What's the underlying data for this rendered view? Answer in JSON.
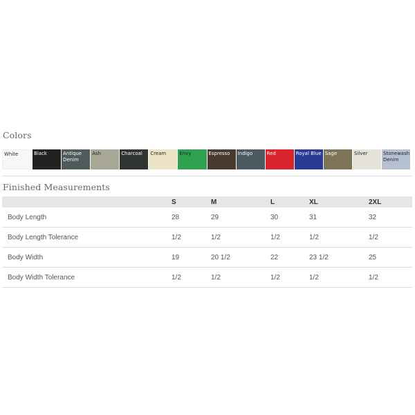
{
  "colors_section": {
    "title": "Colors",
    "swatches": [
      {
        "label": "White",
        "bg": "#f7f7f7",
        "fg": "#222222"
      },
      {
        "label": "Black",
        "bg": "#232220",
        "fg": "#ffffff"
      },
      {
        "label": "Antique Denim",
        "bg": "#4f5a5c",
        "fg": "#ffffff"
      },
      {
        "label": "Ash",
        "bg": "#a8a694",
        "fg": "#222222"
      },
      {
        "label": "Charcoal",
        "bg": "#2f3430",
        "fg": "#ffffff"
      },
      {
        "label": "Cream",
        "bg": "#ece2c5",
        "fg": "#222222"
      },
      {
        "label": "Envy",
        "bg": "#2ea250",
        "fg": "#222222"
      },
      {
        "label": "Espresso",
        "bg": "#4a3a2e",
        "fg": "#ffffff"
      },
      {
        "label": "Indigo",
        "bg": "#4a5a5e",
        "fg": "#ffffff"
      },
      {
        "label": "Red",
        "bg": "#d8232f",
        "fg": "#ffffff"
      },
      {
        "label": "Royal Blue",
        "bg": "#2b3b95",
        "fg": "#ffffff"
      },
      {
        "label": "Sage",
        "bg": "#7d7355",
        "fg": "#ffffff"
      },
      {
        "label": "Silver",
        "bg": "#e5e2dc",
        "fg": "#222222"
      },
      {
        "label": "Stonewash Denim",
        "bg": "#b5c0d2",
        "fg": "#222222"
      }
    ]
  },
  "measurements_section": {
    "title": "Finished Measurements",
    "headers": [
      "",
      "S",
      "M",
      "L",
      "XL",
      "2XL"
    ],
    "rows": [
      {
        "label": "Body Length",
        "values": [
          "28",
          "29",
          "30",
          "31",
          "32"
        ]
      },
      {
        "label": "Body Length Tolerance",
        "values": [
          "1/2",
          "1/2",
          "1/2",
          "1/2",
          "1/2"
        ]
      },
      {
        "label": "Body Width",
        "values": [
          "19",
          "20 1/2",
          "22",
          "23 1/2",
          "25"
        ]
      },
      {
        "label": "Body Width Tolerance",
        "values": [
          "1/2",
          "1/2",
          "1/2",
          "1/2",
          "1/2"
        ]
      }
    ]
  }
}
